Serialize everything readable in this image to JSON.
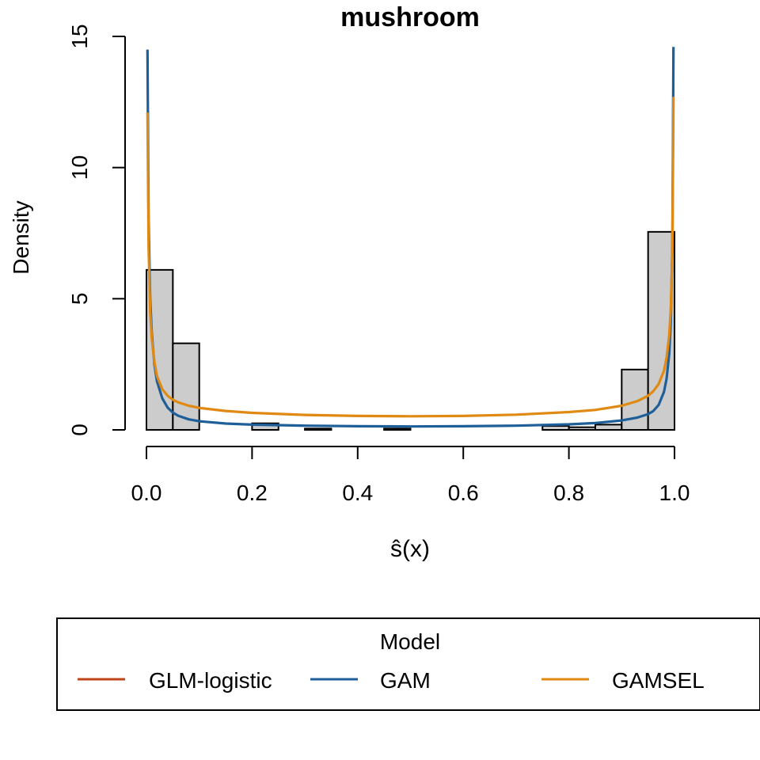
{
  "chart_data": {
    "type": "histogram",
    "title": "mushroom",
    "xlabel": "ŝ(x)",
    "ylabel": "Density",
    "xlim": [
      0,
      1
    ],
    "ylim": [
      0,
      15
    ],
    "x_ticks": [
      0.0,
      0.2,
      0.4,
      0.6,
      0.8,
      1.0
    ],
    "x_tick_labels": [
      "0.0",
      "0.2",
      "0.4",
      "0.6",
      "0.8",
      "1.0"
    ],
    "y_ticks": [
      0,
      5,
      10,
      15
    ],
    "y_tick_labels": [
      "0",
      "5",
      "10",
      "15"
    ],
    "grid": false,
    "histogram": {
      "bin_width": 0.05,
      "fill": "#cccccc",
      "bins": [
        {
          "x0": 0.0,
          "x1": 0.05,
          "density": 6.1
        },
        {
          "x0": 0.05,
          "x1": 0.1,
          "density": 3.3
        },
        {
          "x0": 0.1,
          "x1": 0.15,
          "density": 0.0
        },
        {
          "x0": 0.15,
          "x1": 0.2,
          "density": 0.0
        },
        {
          "x0": 0.2,
          "x1": 0.25,
          "density": 0.25
        },
        {
          "x0": 0.25,
          "x1": 0.3,
          "density": 0.0
        },
        {
          "x0": 0.3,
          "x1": 0.35,
          "density": 0.05
        },
        {
          "x0": 0.35,
          "x1": 0.4,
          "density": 0.0
        },
        {
          "x0": 0.4,
          "x1": 0.45,
          "density": 0.0
        },
        {
          "x0": 0.45,
          "x1": 0.5,
          "density": 0.05
        },
        {
          "x0": 0.5,
          "x1": 0.55,
          "density": 0.0
        },
        {
          "x0": 0.55,
          "x1": 0.6,
          "density": 0.0
        },
        {
          "x0": 0.6,
          "x1": 0.65,
          "density": 0.0
        },
        {
          "x0": 0.65,
          "x1": 0.7,
          "density": 0.0
        },
        {
          "x0": 0.7,
          "x1": 0.75,
          "density": 0.0
        },
        {
          "x0": 0.75,
          "x1": 0.8,
          "density": 0.15
        },
        {
          "x0": 0.8,
          "x1": 0.85,
          "density": 0.1
        },
        {
          "x0": 0.85,
          "x1": 0.9,
          "density": 0.2
        },
        {
          "x0": 0.9,
          "x1": 0.95,
          "density": 2.3
        },
        {
          "x0": 0.95,
          "x1": 1.0,
          "density": 7.55
        }
      ]
    },
    "series": [
      {
        "name": "GAM",
        "color": "#1f5f99",
        "x": [
          0.002,
          0.004,
          0.007,
          0.01,
          0.015,
          0.02,
          0.03,
          0.04,
          0.05,
          0.06,
          0.08,
          0.1,
          0.15,
          0.2,
          0.3,
          0.4,
          0.5,
          0.6,
          0.7,
          0.8,
          0.85,
          0.9,
          0.93,
          0.95,
          0.96,
          0.97,
          0.98,
          0.985,
          0.99,
          0.993,
          0.996,
          0.998
        ],
        "y": [
          14.5,
          8.0,
          5.0,
          3.7,
          2.5,
          1.85,
          1.2,
          0.85,
          0.66,
          0.54,
          0.4,
          0.33,
          0.24,
          0.2,
          0.16,
          0.14,
          0.13,
          0.14,
          0.16,
          0.21,
          0.26,
          0.36,
          0.47,
          0.6,
          0.72,
          0.95,
          1.45,
          1.95,
          2.9,
          4.1,
          7.0,
          14.6
        ]
      },
      {
        "name": "GAMSEL",
        "color": "#e08a14",
        "x": [
          0.002,
          0.004,
          0.007,
          0.01,
          0.015,
          0.02,
          0.03,
          0.04,
          0.05,
          0.06,
          0.08,
          0.1,
          0.15,
          0.2,
          0.3,
          0.4,
          0.5,
          0.6,
          0.7,
          0.8,
          0.85,
          0.9,
          0.93,
          0.95,
          0.96,
          0.97,
          0.98,
          0.985,
          0.99,
          0.993,
          0.996,
          0.998
        ],
        "y": [
          12.1,
          7.0,
          4.5,
          3.5,
          2.6,
          2.05,
          1.55,
          1.3,
          1.15,
          1.05,
          0.92,
          0.84,
          0.72,
          0.65,
          0.57,
          0.53,
          0.52,
          0.53,
          0.58,
          0.68,
          0.76,
          0.92,
          1.1,
          1.3,
          1.48,
          1.75,
          2.25,
          2.75,
          3.6,
          4.6,
          6.8,
          12.7
        ]
      }
    ],
    "legend": {
      "title": "Model",
      "placement": "bottom",
      "entries": [
        {
          "label": "GLM-logistic",
          "color": "#c0441a"
        },
        {
          "label": "GAM",
          "color": "#1f5f99"
        },
        {
          "label": "GAMSEL",
          "color": "#e08a14"
        }
      ]
    }
  }
}
